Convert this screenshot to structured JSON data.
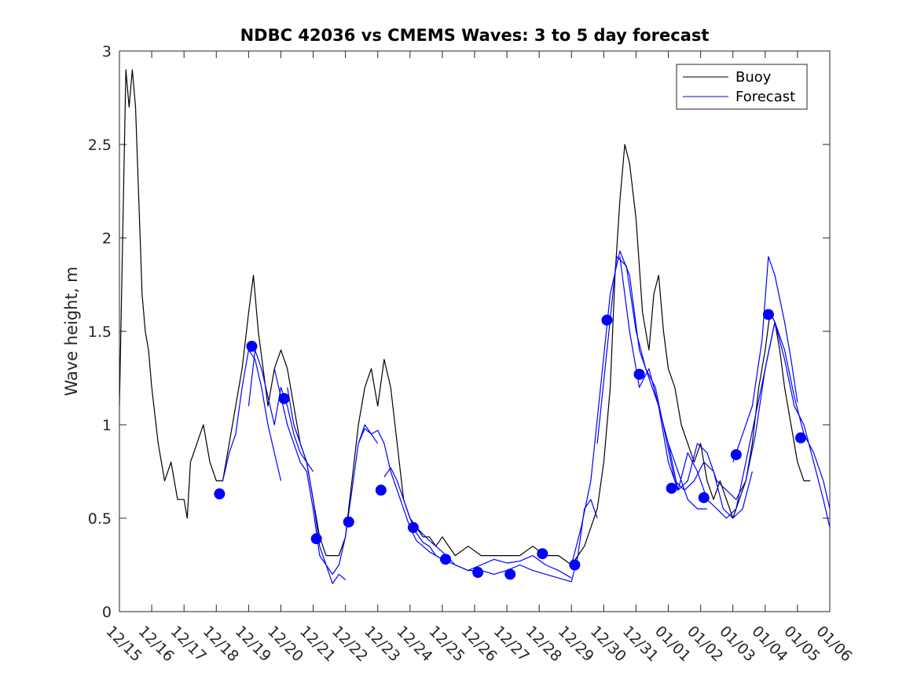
{
  "chart_data": {
    "type": "line",
    "title": "NDBC 42036 vs CMEMS Waves: 3 to 5 day forecast",
    "xlabel": "",
    "ylabel": "Wave height, m",
    "xlim": [
      0,
      22
    ],
    "ylim": [
      0,
      3
    ],
    "x_tick_values": [
      0,
      1,
      2,
      3,
      4,
      5,
      6,
      7,
      8,
      9,
      10,
      11,
      12,
      13,
      14,
      15,
      16,
      17,
      18,
      19,
      20,
      21,
      22
    ],
    "x_tick_labels": [
      "12/15",
      "12/16",
      "12/17",
      "12/18",
      "12/19",
      "12/20",
      "12/21",
      "12/22",
      "12/23",
      "12/24",
      "12/25",
      "12/26",
      "12/27",
      "12/28",
      "12/29",
      "12/30",
      "12/31",
      "01/01",
      "01/02",
      "01/03",
      "01/04",
      "01/05",
      "01/06"
    ],
    "y_tick_values": [
      0,
      0.5,
      1,
      1.5,
      2,
      2.5,
      3
    ],
    "y_tick_labels": [
      "0",
      "0.5",
      "1",
      "1.5",
      "2",
      "2.5",
      "3"
    ],
    "legend": {
      "position": "top-right",
      "entries": [
        {
          "label": "Buoy",
          "color": "#000000"
        },
        {
          "label": "Forecast",
          "color": "#0000ff"
        }
      ]
    },
    "series": [
      {
        "name": "Buoy",
        "color": "#000000",
        "x": [
          0,
          0.1,
          0.2,
          0.3,
          0.4,
          0.5,
          0.6,
          0.7,
          0.8,
          0.9,
          1.0,
          1.2,
          1.4,
          1.6,
          1.8,
          2.0,
          2.1,
          2.2,
          2.4,
          2.6,
          2.8,
          3.0,
          3.2,
          3.4,
          3.6,
          3.8,
          4.0,
          4.15,
          4.3,
          4.45,
          4.6,
          4.8,
          5.0,
          5.2,
          5.4,
          5.6,
          5.8,
          6.0,
          6.2,
          6.4,
          6.6,
          6.8,
          7.0,
          7.2,
          7.4,
          7.6,
          7.8,
          8.0,
          8.2,
          8.4,
          8.6,
          8.8,
          9.0,
          9.2,
          9.4,
          9.6,
          9.8,
          10.0,
          10.4,
          10.8,
          11.2,
          11.6,
          12.0,
          12.4,
          12.8,
          13.2,
          13.6,
          14.0,
          14.2,
          14.4,
          14.6,
          14.8,
          15.0,
          15.2,
          15.35,
          15.5,
          15.65,
          15.8,
          16.0,
          16.2,
          16.4,
          16.55,
          16.7,
          16.85,
          17.0,
          17.2,
          17.4,
          17.6,
          17.8,
          18.0,
          18.2,
          18.4,
          18.6,
          18.8,
          19.0,
          19.2,
          19.4,
          19.6,
          19.8,
          20.0,
          20.15,
          20.3,
          20.45,
          20.6,
          20.8,
          21.0,
          21.2,
          21.4
        ],
        "values": [
          1.1,
          2.0,
          2.9,
          2.7,
          2.9,
          2.7,
          2.2,
          1.7,
          1.5,
          1.4,
          1.2,
          0.9,
          0.7,
          0.8,
          0.6,
          0.6,
          0.5,
          0.8,
          0.9,
          1.0,
          0.8,
          0.7,
          0.7,
          0.9,
          1.1,
          1.3,
          1.6,
          1.8,
          1.5,
          1.3,
          1.1,
          1.3,
          1.4,
          1.3,
          1.1,
          0.9,
          0.8,
          0.6,
          0.4,
          0.3,
          0.3,
          0.3,
          0.4,
          0.7,
          1.0,
          1.2,
          1.3,
          1.1,
          1.35,
          1.2,
          0.9,
          0.6,
          0.5,
          0.45,
          0.4,
          0.4,
          0.35,
          0.4,
          0.3,
          0.35,
          0.3,
          0.3,
          0.3,
          0.3,
          0.35,
          0.3,
          0.3,
          0.25,
          0.3,
          0.35,
          0.45,
          0.55,
          0.8,
          1.2,
          1.8,
          2.2,
          2.5,
          2.4,
          2.1,
          1.6,
          1.4,
          1.7,
          1.8,
          1.5,
          1.3,
          1.2,
          1.0,
          0.9,
          0.8,
          0.9,
          0.7,
          0.6,
          0.7,
          0.6,
          0.5,
          0.6,
          0.7,
          0.9,
          1.2,
          1.4,
          1.6,
          1.55,
          1.4,
          1.2,
          1.0,
          0.8,
          0.7,
          0.7
        ]
      },
      {
        "name": "Forecast",
        "color": "#0000ff",
        "segments": [
          {
            "x": [
              3.2,
              3.4,
              3.6,
              3.8,
              4.0,
              4.2,
              4.4,
              4.6,
              4.8,
              5.0
            ],
            "values": [
              0.7,
              0.85,
              0.95,
              1.2,
              1.4,
              1.35,
              1.2,
              1.0,
              0.85,
              0.7
            ]
          },
          {
            "x": [
              4.0,
              4.2,
              4.4,
              4.6,
              4.8,
              5.0,
              5.2,
              5.4,
              5.6,
              5.8,
              6.0
            ],
            "values": [
              1.1,
              1.4,
              1.3,
              1.15,
              1.0,
              1.2,
              1.1,
              0.95,
              0.85,
              0.8,
              0.75
            ]
          },
          {
            "x": [
              4.8,
              5.0,
              5.2,
              5.4,
              5.6,
              5.8,
              6.0,
              6.2,
              6.4,
              6.6,
              6.8,
              7.0
            ],
            "values": [
              1.3,
              1.15,
              1.0,
              0.9,
              0.8,
              0.75,
              0.55,
              0.3,
              0.25,
              0.15,
              0.2,
              0.17
            ]
          },
          {
            "x": [
              5.2,
              5.4,
              5.6,
              5.8,
              6.0,
              6.2,
              6.4,
              6.6,
              6.8,
              7.0,
              7.2,
              7.4,
              7.6,
              7.8,
              8.0
            ],
            "values": [
              1.2,
              1.0,
              0.9,
              0.8,
              0.6,
              0.35,
              0.25,
              0.2,
              0.25,
              0.4,
              0.65,
              0.9,
              1.0,
              0.95,
              0.9
            ]
          },
          {
            "x": [
              7.4,
              7.6,
              7.8,
              8.0,
              8.2,
              8.4,
              8.6,
              8.8,
              9.0,
              9.2,
              9.4,
              9.6,
              9.8,
              10.0,
              10.2
            ],
            "values": [
              0.9,
              0.98,
              0.95,
              0.97,
              0.9,
              0.75,
              0.65,
              0.55,
              0.45,
              0.38,
              0.35,
              0.32,
              0.3,
              0.28,
              0.3
            ]
          },
          {
            "x": [
              8.2,
              8.4,
              8.6,
              8.8,
              9.0,
              9.2,
              9.4,
              9.6,
              9.8,
              10.0,
              10.4,
              10.8,
              11.2,
              11.6,
              12.0,
              12.4,
              12.8,
              13.2,
              13.6,
              14.0
            ],
            "values": [
              0.72,
              0.77,
              0.7,
              0.6,
              0.5,
              0.42,
              0.37,
              0.35,
              0.3,
              0.28,
              0.25,
              0.22,
              0.25,
              0.28,
              0.26,
              0.27,
              0.3,
              0.25,
              0.22,
              0.18
            ]
          },
          {
            "x": [
              9.2,
              9.6,
              10.0,
              10.4,
              10.8,
              11.2,
              11.6,
              12.0,
              12.4,
              12.8,
              13.2,
              13.6,
              14.0,
              14.2,
              14.4,
              14.6,
              14.8
            ],
            "values": [
              0.45,
              0.38,
              0.32,
              0.25,
              0.22,
              0.22,
              0.2,
              0.22,
              0.25,
              0.22,
              0.2,
              0.18,
              0.16,
              0.3,
              0.55,
              0.6,
              0.5
            ]
          },
          {
            "x": [
              14.0,
              14.3,
              14.6,
              14.9,
              15.2,
              15.5,
              15.8,
              16.1,
              16.4,
              16.7,
              17.0,
              17.3,
              17.6,
              17.9,
              18.2
            ],
            "values": [
              0.25,
              0.45,
              0.7,
              1.2,
              1.7,
              1.93,
              1.8,
              1.4,
              1.25,
              1.1,
              0.9,
              0.75,
              0.6,
              0.55,
              0.55
            ]
          },
          {
            "x": [
              14.8,
              15.1,
              15.4,
              15.7,
              16.0,
              16.3,
              16.6,
              16.9,
              17.2,
              17.5,
              17.8,
              18.1,
              18.4,
              18.7,
              19.0,
              19.3,
              19.6
            ],
            "values": [
              0.9,
              1.4,
              1.9,
              1.85,
              1.5,
              1.3,
              1.2,
              0.95,
              0.7,
              0.65,
              0.7,
              0.8,
              0.75,
              0.55,
              0.5,
              0.55,
              0.75
            ]
          },
          {
            "x": [
              15.5,
              15.8,
              16.1,
              16.4,
              16.7,
              17.0,
              17.3,
              17.6,
              17.9,
              18.2,
              18.5,
              18.8,
              19.1,
              19.4,
              19.7,
              20.0,
              20.3,
              20.6,
              20.9,
              21.2,
              21.5,
              21.8,
              22.0
            ],
            "values": [
              1.9,
              1.5,
              1.2,
              1.3,
              1.1,
              0.8,
              0.65,
              0.7,
              0.9,
              0.85,
              0.7,
              0.65,
              0.6,
              0.7,
              0.95,
              1.3,
              1.55,
              1.35,
              1.1,
              1.0,
              0.8,
              0.6,
              0.45
            ]
          },
          {
            "x": [
              17.0,
              17.3,
              17.6,
              17.9,
              18.2,
              18.5,
              18.8,
              19.1,
              19.4,
              19.7,
              20.0,
              20.3,
              20.6,
              20.9,
              21.2,
              21.5,
              21.8,
              22.0
            ],
            "values": [
              0.9,
              0.65,
              0.85,
              0.75,
              0.6,
              0.55,
              0.5,
              0.55,
              0.8,
              1.05,
              1.3,
              1.55,
              1.4,
              1.15,
              0.95,
              0.85,
              0.7,
              0.55
            ]
          },
          {
            "x": [
              19.0,
              19.3,
              19.6,
              19.9,
              20.1,
              20.3,
              20.6,
              20.8,
              21.0
            ],
            "values": [
              0.8,
              0.95,
              1.1,
              1.45,
              1.9,
              1.8,
              1.55,
              1.35,
              1.12
            ]
          }
        ]
      }
    ],
    "markers": {
      "name": "Forecast start points",
      "color": "#0000ff",
      "x": [
        3.1,
        4.1,
        5.1,
        6.1,
        7.1,
        8.1,
        9.1,
        10.1,
        11.1,
        12.1,
        13.1,
        14.1,
        15.1,
        16.1,
        17.1,
        18.1,
        19.1,
        20.1,
        21.1
      ],
      "values": [
        0.63,
        1.42,
        1.14,
        0.39,
        0.48,
        0.65,
        0.45,
        0.28,
        0.21,
        0.2,
        0.31,
        0.25,
        1.56,
        1.27,
        0.66,
        0.61,
        0.84,
        1.59,
        0.93
      ]
    }
  }
}
